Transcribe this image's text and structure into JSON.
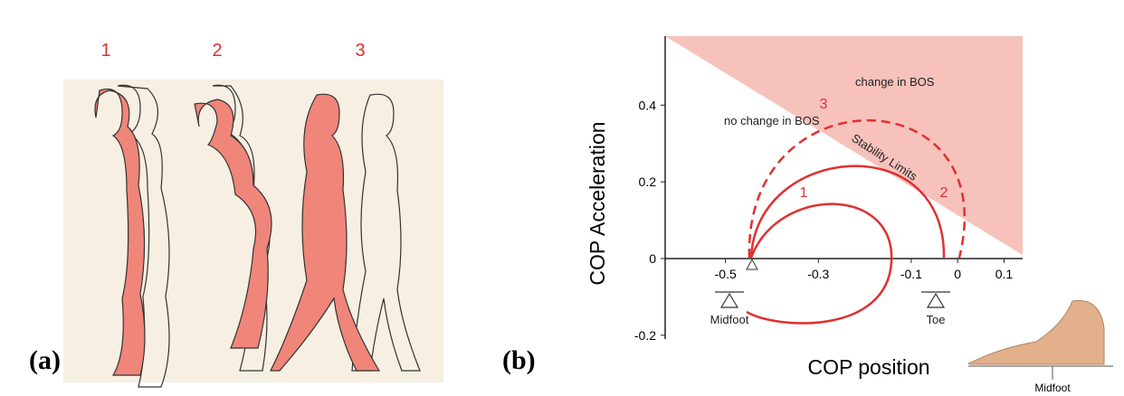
{
  "panel_a": {
    "label": "(a)",
    "figures": [
      "1",
      "2",
      "3"
    ]
  },
  "panel_b": {
    "label": "(b)",
    "y_axis_title": "COP Acceleration",
    "x_axis_title": "COP position",
    "xlim": [
      -0.63,
      0.14
    ],
    "ylim": [
      -0.21,
      0.58
    ],
    "xticks": [
      -0.5,
      -0.3,
      -0.1,
      0,
      0.1
    ],
    "yticks": [
      -0.2,
      0,
      0.2,
      0.4
    ],
    "region_labels": [
      "no change in BOS",
      "change in BOS"
    ],
    "boundary_label": "Stability Limits",
    "curve_labels": [
      "1",
      "2",
      "3"
    ],
    "point_labels": [
      "Midfoot",
      "Toe"
    ],
    "foot_label": "Midfoot"
  }
}
